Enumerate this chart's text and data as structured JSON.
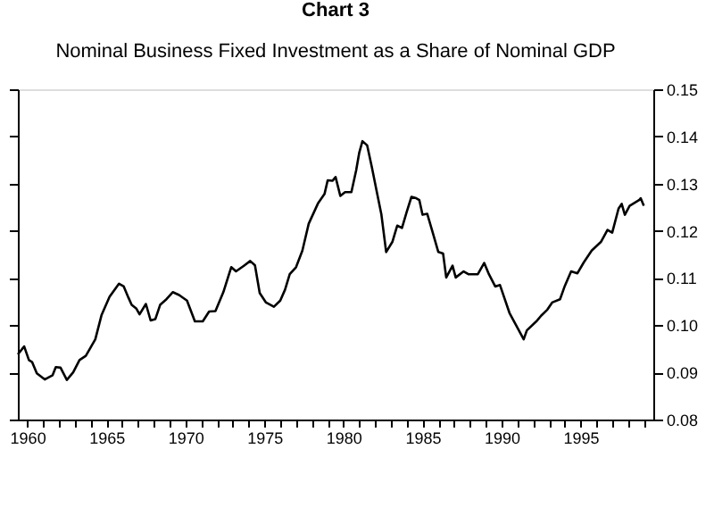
{
  "chart_data": {
    "type": "line",
    "title": "Chart 3",
    "subtitle": "Nominal Business Fixed Investment as a Share of Nominal GDP",
    "x": [
      1959.4,
      1959.8,
      1960.1,
      1960.3,
      1960.6,
      1961.1,
      1961.6,
      1961.8,
      1962.1,
      1962.5,
      1962.9,
      1963.3,
      1963.7,
      1964.3,
      1964.7,
      1965.2,
      1965.8,
      1966.1,
      1966.4,
      1966.6,
      1966.9,
      1967.1,
      1967.5,
      1967.8,
      1968.1,
      1968.4,
      1968.8,
      1969.2,
      1969.6,
      1970.1,
      1970.6,
      1971.1,
      1971.5,
      1971.9,
      1972.4,
      1972.9,
      1973.2,
      1973.7,
      1974.1,
      1974.4,
      1974.7,
      1975.1,
      1975.6,
      1976.0,
      1976.3,
      1976.6,
      1977.0,
      1977.4,
      1977.8,
      1978.4,
      1978.8,
      1979.0,
      1979.3,
      1979.5,
      1979.8,
      1980.1,
      1980.5,
      1980.8,
      1981.0,
      1981.2,
      1981.5,
      1981.8,
      1982.1,
      1982.4,
      1982.7,
      1983.1,
      1983.4,
      1983.7,
      1984.0,
      1984.3,
      1984.6,
      1984.8,
      1985.0,
      1985.3,
      1985.7,
      1986.0,
      1986.3,
      1986.5,
      1986.9,
      1987.1,
      1987.6,
      1987.9,
      1988.5,
      1988.9,
      1989.2,
      1989.6,
      1989.9,
      1990.5,
      1991.4,
      1991.6,
      1992.2,
      1992.5,
      1992.9,
      1993.2,
      1993.7,
      1994.0,
      1994.4,
      1994.8,
      1995.2,
      1995.7,
      1996.3,
      1996.7,
      1997.0,
      1997.4,
      1997.6,
      1997.8,
      1998.1,
      1998.7,
      1998.8,
      1999.0
    ],
    "series": [
      {
        "color": "#000000",
        "values": [
          0.0938,
          0.0955,
          0.0926,
          0.0922,
          0.0898,
          0.0885,
          0.0894,
          0.0911,
          0.091,
          0.0884,
          0.09,
          0.0926,
          0.0935,
          0.097,
          0.1022,
          0.106,
          0.1088,
          0.1082,
          0.1058,
          0.1043,
          0.1035,
          0.1023,
          0.1045,
          0.101,
          0.1013,
          0.1043,
          0.1055,
          0.107,
          0.1064,
          0.1052,
          0.1008,
          0.1008,
          0.1029,
          0.103,
          0.107,
          0.1123,
          0.1114,
          0.1126,
          0.1136,
          0.1127,
          0.1068,
          0.1048,
          0.1039,
          0.1052,
          0.1075,
          0.1108,
          0.1123,
          0.1158,
          0.1215,
          0.1259,
          0.1278,
          0.1307,
          0.1306,
          0.1314,
          0.1274,
          0.1282,
          0.1282,
          0.1328,
          0.1366,
          0.139,
          0.1381,
          0.1334,
          0.1284,
          0.1234,
          0.1155,
          0.1177,
          0.1211,
          0.1206,
          0.124,
          0.1272,
          0.1269,
          0.1265,
          0.1234,
          0.1236,
          0.119,
          0.1155,
          0.1152,
          0.1101,
          0.1126,
          0.1101,
          0.1114,
          0.1108,
          0.1108,
          0.1132,
          0.1108,
          0.1082,
          0.1085,
          0.1026,
          0.097,
          0.0989,
          0.1008,
          0.102,
          0.1033,
          0.1048,
          0.1055,
          0.1083,
          0.1114,
          0.111,
          0.1133,
          0.1158,
          0.1177,
          0.1202,
          0.1196,
          0.1247,
          0.1257,
          0.1234,
          0.1253,
          0.1265,
          0.1269,
          0.1253
        ]
      }
    ],
    "xlim": [
      1959.4,
      1999.6
    ],
    "xticks": [
      1960,
      {
        "value": 1961,
        "label": null
      },
      {
        "value": 1962,
        "label": null
      },
      {
        "value": 1963,
        "label": null
      },
      {
        "value": 1964,
        "label": null
      },
      1965,
      {
        "value": 1966,
        "label": null
      },
      {
        "value": 1967,
        "label": null
      },
      {
        "value": 1968,
        "label": null
      },
      {
        "value": 1969,
        "label": null
      },
      1970,
      {
        "value": 1971,
        "label": null
      },
      {
        "value": 1972,
        "label": null
      },
      {
        "value": 1973,
        "label": null
      },
      {
        "value": 1974,
        "label": null
      },
      1975,
      {
        "value": 1976,
        "label": null
      },
      {
        "value": 1977,
        "label": null
      },
      {
        "value": 1978,
        "label": null
      },
      {
        "value": 1979,
        "label": null
      },
      1980,
      {
        "value": 1981,
        "label": null
      },
      {
        "value": 1982,
        "label": null
      },
      {
        "value": 1983,
        "label": null
      },
      {
        "value": 1984,
        "label": null
      },
      1985,
      {
        "value": 1986,
        "label": null
      },
      {
        "value": 1987,
        "label": null
      },
      {
        "value": 1988,
        "label": null
      },
      {
        "value": 1989,
        "label": null
      },
      1990,
      {
        "value": 1991,
        "label": null
      },
      {
        "value": 1992,
        "label": null
      },
      {
        "value": 1993,
        "label": null
      },
      {
        "value": 1994,
        "label": null
      },
      1995,
      {
        "value": 1996,
        "label": null
      },
      {
        "value": 1997,
        "label": null
      },
      {
        "value": 1998,
        "label": null
      },
      {
        "value": 1999,
        "label": null
      }
    ],
    "ylim": [
      0.08,
      0.15
    ],
    "yticks": [
      0.08,
      0.09,
      {
        "value": 0.1,
        "label": "0.10"
      },
      0.11,
      0.12,
      0.13,
      0.14,
      0.15
    ],
    "grid": false,
    "marker": "none",
    "line_style": "solid"
  }
}
